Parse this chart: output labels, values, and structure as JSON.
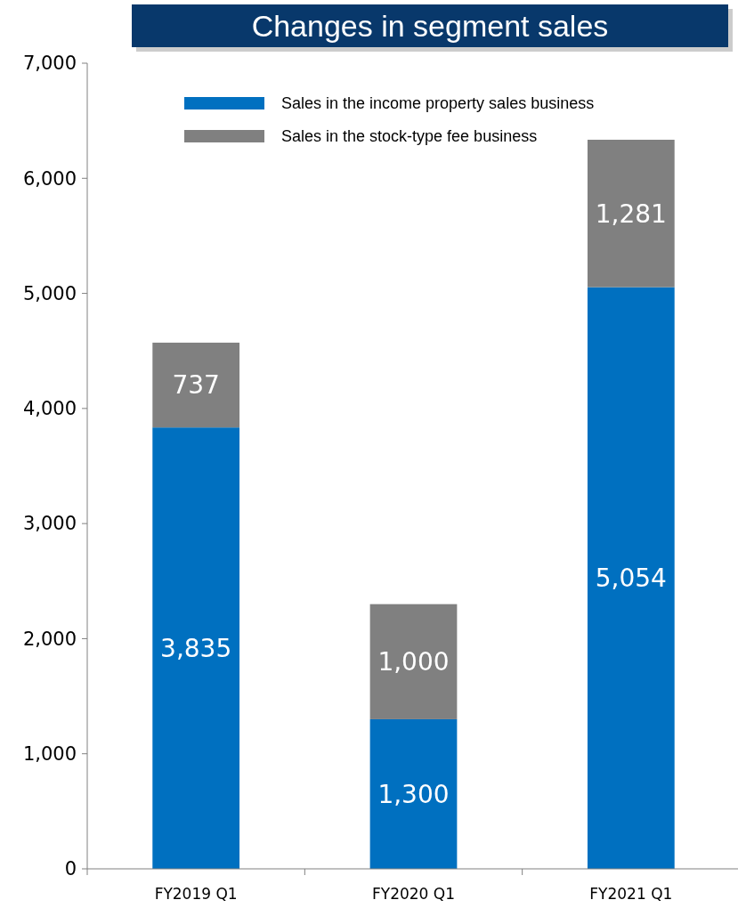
{
  "chart_data": {
    "type": "bar",
    "title": "Changes in segment sales",
    "categories": [
      "FY2019 Q1",
      "FY2020 Q1",
      "FY2021 Q1"
    ],
    "series": [
      {
        "name": "Sales in the income property sales business",
        "color": "#0070c0",
        "values": [
          3835,
          1300,
          5054
        ],
        "value_labels": [
          "3,835",
          "1,300",
          "5,054"
        ]
      },
      {
        "name": "Sales in the stock-type fee business",
        "color": "#808080",
        "values": [
          737,
          1000,
          1281
        ],
        "value_labels": [
          "737",
          "1,000",
          "1,281"
        ]
      }
    ],
    "stacked": true,
    "ylim": [
      0,
      7000
    ],
    "yticks": [
      {
        "value": 0,
        "label": "0"
      },
      {
        "value": 1000,
        "label": "1,000"
      },
      {
        "value": 2000,
        "label": "2,000"
      },
      {
        "value": 3000,
        "label": "3,000"
      },
      {
        "value": 4000,
        "label": "4,000"
      },
      {
        "value": 5000,
        "label": "5,000"
      },
      {
        "value": 6000,
        "label": "6,000"
      },
      {
        "value": 7000,
        "label": "7,000"
      }
    ],
    "grid": false,
    "legend": "top"
  }
}
